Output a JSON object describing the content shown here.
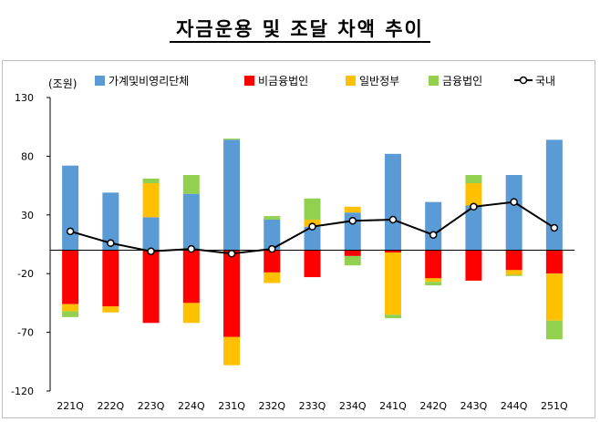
{
  "title": "자금운용 및 조달 차액 추이",
  "chart_data": {
    "type": "bar",
    "stacked": true,
    "unit_label": "(조원)",
    "ylim": [
      -120,
      130
    ],
    "yticks": [
      130,
      80,
      30,
      -20,
      -70,
      -120
    ],
    "grid": false,
    "legend_position": "top",
    "categories": [
      "221Q",
      "222Q",
      "223Q",
      "224Q",
      "231Q",
      "232Q",
      "233Q",
      "234Q",
      "241Q",
      "242Q",
      "243Q",
      "244Q",
      "251Q"
    ],
    "series": [
      {
        "name": "가계및비영리단체",
        "type": "bar",
        "color": "#5b9bd5",
        "values": [
          72,
          49,
          28,
          48,
          94,
          26,
          20,
          32,
          82,
          41,
          38,
          64,
          94
        ]
      },
      {
        "name": "비금융법인",
        "type": "bar",
        "color": "#ff0000",
        "values": [
          -46,
          -48,
          -62,
          -45,
          -74,
          -19,
          -23,
          -5,
          -2,
          -24,
          -26,
          -17,
          -20
        ]
      },
      {
        "name": "일반정부",
        "type": "bar",
        "color": "#ffc000",
        "values": [
          -6,
          -5,
          29,
          -17,
          -24,
          -9,
          6,
          5,
          -53,
          -3,
          19,
          -4,
          -40
        ]
      },
      {
        "name": "금융법인",
        "type": "bar",
        "color": "#92d050",
        "values": [
          -5,
          0,
          4,
          16,
          1,
          3,
          18,
          -8,
          -3,
          -3,
          7,
          -1,
          -16
        ]
      },
      {
        "name": "국내",
        "type": "line",
        "color": "#000000",
        "values": [
          16,
          6,
          -1,
          1,
          -3,
          1,
          20,
          25,
          26,
          13,
          37,
          41,
          19
        ]
      }
    ]
  }
}
